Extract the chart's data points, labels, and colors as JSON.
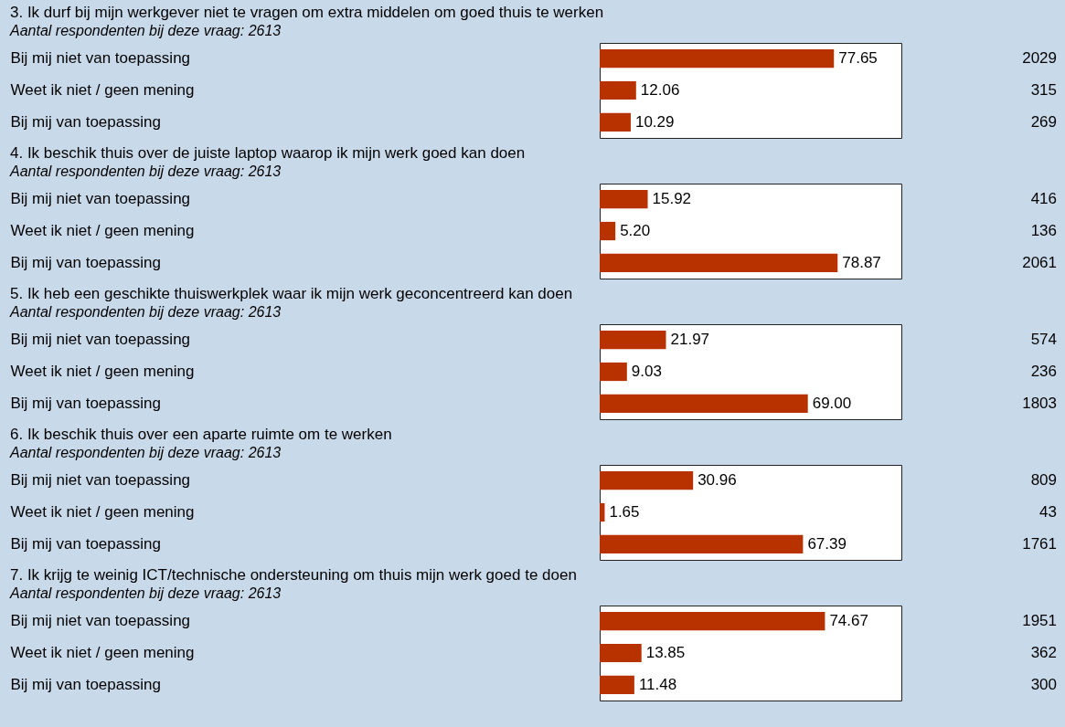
{
  "chart_data": [
    {
      "type": "bar",
      "orientation": "horizontal",
      "title": "3. Ik durf bij mijn werkgever niet te vragen om extra middelen om goed thuis te werken",
      "subtitle": "Aantal respondenten bij deze vraag: 2613",
      "categories": [
        "Bij mij niet van toepassing",
        "Weet ik niet / geen mening",
        "Bij mij van toepassing"
      ],
      "values": [
        77.65,
        12.06,
        10.29
      ],
      "value_labels": [
        "77.65",
        "12.06",
        "10.29"
      ],
      "color": "#b83200",
      "xlim": [
        0,
        100
      ],
      "tick_labels": "y",
      "annotations": [
        "2029",
        "315",
        "269"
      ]
    },
    {
      "type": "bar",
      "orientation": "horizontal",
      "title": "4. Ik beschik thuis over de juiste laptop waarop ik mijn werk goed kan doen",
      "subtitle": "Aantal respondenten bij deze vraag: 2613",
      "categories": [
        "Bij mij niet van toepassing",
        "Weet ik niet / geen mening",
        "Bij mij van toepassing"
      ],
      "values": [
        15.92,
        5.2,
        78.87
      ],
      "value_labels": [
        "15.92",
        "5.20",
        "78.87"
      ],
      "color": "#b83200",
      "xlim": [
        0,
        100
      ],
      "tick_labels": "y",
      "annotations": [
        "416",
        "136",
        "2061"
      ]
    },
    {
      "type": "bar",
      "orientation": "horizontal",
      "title": "5. Ik heb een geschikte thuiswerkplek waar ik mijn werk geconcentreerd kan doen",
      "subtitle": "Aantal respondenten bij deze vraag: 2613",
      "categories": [
        "Bij mij niet van toepassing",
        "Weet ik niet / geen mening",
        "Bij mij van toepassing"
      ],
      "values": [
        21.97,
        9.03,
        69.0
      ],
      "value_labels": [
        "21.97",
        "9.03",
        "69.00"
      ],
      "color": "#b83200",
      "xlim": [
        0,
        100
      ],
      "tick_labels": "y",
      "annotations": [
        "574",
        "236",
        "1803"
      ]
    },
    {
      "type": "bar",
      "orientation": "horizontal",
      "title": "6. Ik beschik thuis over een aparte ruimte om te werken",
      "subtitle": "Aantal respondenten bij deze vraag: 2613",
      "categories": [
        "Bij mij niet van toepassing",
        "Weet ik niet / geen mening",
        "Bij mij van toepassing"
      ],
      "values": [
        30.96,
        1.65,
        67.39
      ],
      "value_labels": [
        "30.96",
        "1.65",
        "67.39"
      ],
      "color": "#b83200",
      "xlim": [
        0,
        100
      ],
      "tick_labels": "y",
      "annotations": [
        "809",
        "43",
        "1761"
      ]
    },
    {
      "type": "bar",
      "orientation": "horizontal",
      "title": "7. Ik krijg te weinig ICT/technische ondersteuning om thuis mijn werk goed te doen",
      "subtitle": "Aantal respondenten bij deze vraag: 2613",
      "categories": [
        "Bij mij niet van toepassing",
        "Weet ik niet / geen mening",
        "Bij mij van toepassing"
      ],
      "values": [
        74.67,
        13.85,
        11.48
      ],
      "value_labels": [
        "74.67",
        "13.85",
        "11.48"
      ],
      "color": "#b83200",
      "xlim": [
        0,
        100
      ],
      "tick_labels": "y",
      "annotations": [
        "1951",
        "362",
        "300"
      ]
    }
  ]
}
